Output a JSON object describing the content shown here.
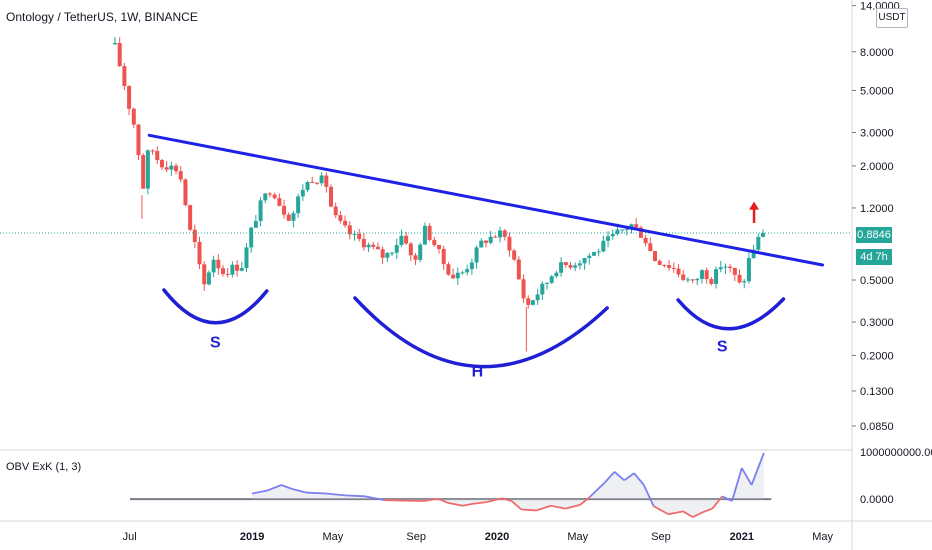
{
  "header": {
    "title": "Ontology / TetherUS, 1W, BINANCE"
  },
  "currency_label": "USDT",
  "last_price": "0.8846",
  "countdown": "4d 7h",
  "indicator": {
    "name": "OBV ExK (1, 3)",
    "tick_labels": [
      "1000000000.0000",
      "0.0000"
    ]
  },
  "colors": {
    "up": "#26a69a",
    "down": "#ef5350",
    "trendline": "#1e22e6",
    "pattern": "#1f1fd6",
    "arrow": "#e81c1c",
    "obv_above": "#7b7ff0",
    "obv_below": "#ef6b6b"
  },
  "annotations": {
    "left_shoulder": "S",
    "head": "H",
    "right_shoulder": "S"
  },
  "chart_data": [
    {
      "type": "candlestick",
      "title": "Ontology / TetherUS, 1W, BINANCE",
      "y_scale": "log",
      "ylim": [
        0.065,
        15
      ],
      "xlim": [
        2018.44,
        2021.45
      ],
      "y_ticks": [
        {
          "value": 14,
          "label": "14.0000"
        },
        {
          "value": 8,
          "label": "8.0000"
        },
        {
          "value": 5,
          "label": "5.0000"
        },
        {
          "value": 3,
          "label": "3.0000"
        },
        {
          "value": 2,
          "label": "2.0000"
        },
        {
          "value": 1.2,
          "label": "1.2000"
        },
        {
          "value": 0.5,
          "label": "0.5000"
        },
        {
          "value": 0.3,
          "label": "0.3000"
        },
        {
          "value": 0.2,
          "label": "0.2000"
        },
        {
          "value": 0.13,
          "label": "0.1300"
        },
        {
          "value": 0.085,
          "label": "0.0850"
        }
      ],
      "x_ticks": [
        {
          "value": 2018.5,
          "label": "Jul"
        },
        {
          "value": 2019.0,
          "label": "2019"
        },
        {
          "value": 2019.33,
          "label": "May"
        },
        {
          "value": 2019.67,
          "label": "Sep"
        },
        {
          "value": 2020.0,
          "label": "2020"
        },
        {
          "value": 2020.33,
          "label": "May"
        },
        {
          "value": 2020.67,
          "label": "Sep"
        },
        {
          "value": 2021.0,
          "label": "2021"
        },
        {
          "value": 2021.33,
          "label": "May"
        }
      ],
      "close_path": [
        [
          2018.44,
          8.5
        ],
        [
          2018.47,
          6.0
        ],
        [
          2018.5,
          4.0
        ],
        [
          2018.53,
          2.9
        ],
        [
          2018.55,
          1.4
        ],
        [
          2018.58,
          2.6
        ],
        [
          2018.62,
          2.1
        ],
        [
          2018.66,
          2.0
        ],
        [
          2018.7,
          1.9
        ],
        [
          2018.72,
          1.5
        ],
        [
          2018.74,
          0.95
        ],
        [
          2018.77,
          0.75
        ],
        [
          2018.8,
          0.45
        ],
        [
          2018.84,
          0.66
        ],
        [
          2018.88,
          0.55
        ],
        [
          2018.92,
          0.58
        ],
        [
          2018.96,
          0.6
        ],
        [
          2019.0,
          0.95
        ],
        [
          2019.04,
          1.3
        ],
        [
          2019.08,
          1.55
        ],
        [
          2019.12,
          1.2
        ],
        [
          2019.16,
          1.05
        ],
        [
          2019.2,
          1.5
        ],
        [
          2019.25,
          1.75
        ],
        [
          2019.3,
          1.65
        ],
        [
          2019.33,
          1.1
        ],
        [
          2019.37,
          0.95
        ],
        [
          2019.41,
          0.85
        ],
        [
          2019.45,
          0.8
        ],
        [
          2019.5,
          0.72
        ],
        [
          2019.54,
          0.66
        ],
        [
          2019.58,
          0.75
        ],
        [
          2019.62,
          0.9
        ],
        [
          2019.66,
          0.58
        ],
        [
          2019.7,
          0.95
        ],
        [
          2019.74,
          0.8
        ],
        [
          2019.78,
          0.62
        ],
        [
          2019.82,
          0.52
        ],
        [
          2019.86,
          0.55
        ],
        [
          2019.9,
          0.65
        ],
        [
          2019.94,
          0.8
        ],
        [
          2019.98,
          0.85
        ],
        [
          2020.02,
          0.88
        ],
        [
          2020.06,
          0.72
        ],
        [
          2020.09,
          0.5
        ],
        [
          2020.12,
          0.36
        ],
        [
          2020.16,
          0.42
        ],
        [
          2020.2,
          0.48
        ],
        [
          2020.24,
          0.58
        ],
        [
          2020.28,
          0.6
        ],
        [
          2020.32,
          0.62
        ],
        [
          2020.36,
          0.66
        ],
        [
          2020.4,
          0.7
        ],
        [
          2020.45,
          0.8
        ],
        [
          2020.5,
          0.9
        ],
        [
          2020.55,
          0.98
        ],
        [
          2020.6,
          0.85
        ],
        [
          2020.64,
          0.65
        ],
        [
          2020.68,
          0.62
        ],
        [
          2020.72,
          0.58
        ],
        [
          2020.76,
          0.52
        ],
        [
          2020.8,
          0.48
        ],
        [
          2020.84,
          0.56
        ],
        [
          2020.88,
          0.5
        ],
        [
          2020.92,
          0.62
        ],
        [
          2020.96,
          0.55
        ],
        [
          2021.0,
          0.45
        ],
        [
          2021.03,
          0.65
        ],
        [
          2021.06,
          0.8
        ],
        [
          2021.09,
          0.8846
        ]
      ],
      "last": 0.8846,
      "trendline": {
        "from": [
          2018.58,
          2.9
        ],
        "to": [
          2021.33,
          0.6
        ]
      },
      "annotations": [
        {
          "text": "S",
          "x": 2018.85,
          "y": 0.22
        },
        {
          "text": "H",
          "x": 2019.92,
          "y": 0.155
        },
        {
          "text": "S",
          "x": 2020.92,
          "y": 0.21
        }
      ],
      "breakout_arrow": {
        "x": 2021.05,
        "y_from": 1.0,
        "y_to": 1.25
      }
    },
    {
      "type": "line",
      "title": "OBV ExK (1, 3)",
      "baseline": 0,
      "ylim": [
        -400000000.0,
        1000000000.0
      ],
      "series": [
        {
          "points": [
            [
              2019.0,
              120000000.0
            ],
            [
              2019.06,
              180000000.0
            ],
            [
              2019.12,
              300000000.0
            ],
            [
              2019.16,
              220000000.0
            ],
            [
              2019.22,
              140000000.0
            ],
            [
              2019.3,
              120000000.0
            ],
            [
              2019.38,
              80000000.0
            ],
            [
              2019.46,
              60000000.0
            ],
            [
              2019.54,
              -20000000.0
            ],
            [
              2019.62,
              -30000000.0
            ],
            [
              2019.7,
              -40000000.0
            ],
            [
              2019.76,
              10000000.0
            ],
            [
              2019.8,
              -80000000.0
            ],
            [
              2019.86,
              -140000000.0
            ],
            [
              2019.9,
              -100000000.0
            ],
            [
              2019.96,
              -60000000.0
            ],
            [
              2020.02,
              20000000.0
            ],
            [
              2020.06,
              -40000000.0
            ],
            [
              2020.1,
              -220000000.0
            ],
            [
              2020.16,
              -240000000.0
            ],
            [
              2020.22,
              -140000000.0
            ],
            [
              2020.28,
              -200000000.0
            ],
            [
              2020.34,
              -120000000.0
            ],
            [
              2020.38,
              50000000.0
            ],
            [
              2020.44,
              350000000.0
            ],
            [
              2020.48,
              580000000.0
            ],
            [
              2020.52,
              400000000.0
            ],
            [
              2020.56,
              550000000.0
            ],
            [
              2020.6,
              300000000.0
            ],
            [
              2020.64,
              -150000000.0
            ],
            [
              2020.7,
              -320000000.0
            ],
            [
              2020.76,
              -260000000.0
            ],
            [
              2020.8,
              -380000000.0
            ],
            [
              2020.84,
              -280000000.0
            ],
            [
              2020.88,
              -200000000.0
            ],
            [
              2020.92,
              60000000.0
            ],
            [
              2020.96,
              -40000000.0
            ],
            [
              2021.0,
              660000000.0
            ],
            [
              2021.04,
              300000000.0
            ],
            [
              2021.09,
              980000000.0
            ]
          ]
        }
      ]
    }
  ]
}
